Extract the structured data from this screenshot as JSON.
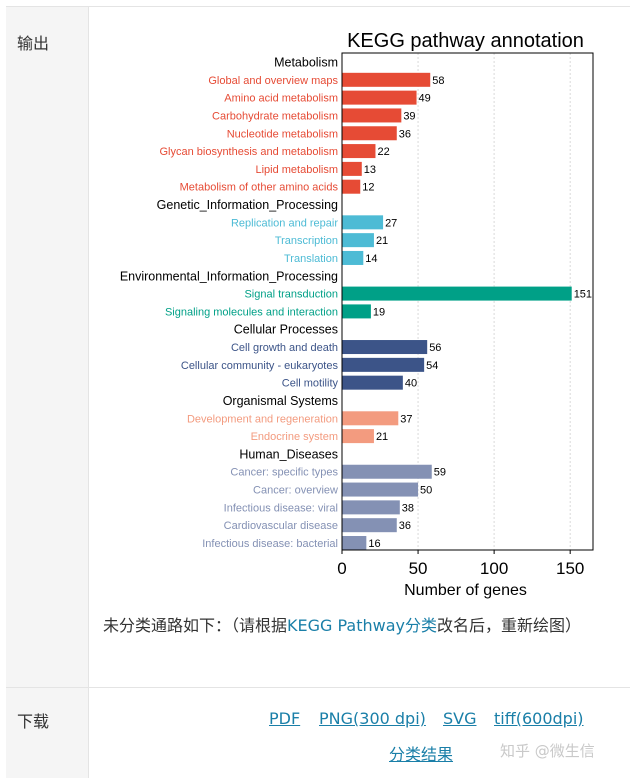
{
  "sections": {
    "output_label": "输出",
    "download_label": "下载"
  },
  "chart_data": {
    "type": "bar",
    "orientation": "horizontal",
    "title": "KEGG pathway annotation",
    "xlabel": "Number of genes",
    "ylabel": "",
    "xlim": [
      0,
      165
    ],
    "xticks": [
      0,
      50,
      100,
      150
    ],
    "grid": "vertical dashed",
    "groups": [
      {
        "name": "Metabolism",
        "color": "#e64b35",
        "items": [
          {
            "label": "Global and overview maps",
            "value": 58
          },
          {
            "label": "Amino acid metabolism",
            "value": 49
          },
          {
            "label": "Carbohydrate metabolism",
            "value": 39
          },
          {
            "label": "Nucleotide metabolism",
            "value": 36
          },
          {
            "label": "Glycan biosynthesis and metabolism",
            "value": 22
          },
          {
            "label": "Lipid metabolism",
            "value": 13
          },
          {
            "label": "Metabolism of other amino acids",
            "value": 12
          }
        ]
      },
      {
        "name": "Genetic_Information_Processing",
        "color": "#4dbbd5",
        "items": [
          {
            "label": "Replication and repair",
            "value": 27
          },
          {
            "label": "Transcription",
            "value": 21
          },
          {
            "label": "Translation",
            "value": 14
          }
        ]
      },
      {
        "name": "Environmental_Information_Processing",
        "color": "#00a087",
        "items": [
          {
            "label": "Signal transduction",
            "value": 151
          },
          {
            "label": "Signaling molecules and interaction",
            "value": 19
          }
        ]
      },
      {
        "name": "Cellular Processes",
        "color": "#3c5488",
        "items": [
          {
            "label": "Cell growth and death",
            "value": 56
          },
          {
            "label": "Cellular community - eukaryotes",
            "value": 54
          },
          {
            "label": "Cell motility",
            "value": 40
          }
        ]
      },
      {
        "name": "Organismal Systems",
        "color": "#f39b7f",
        "items": [
          {
            "label": "Development and regeneration",
            "value": 37
          },
          {
            "label": "Endocrine system",
            "value": 21
          }
        ]
      },
      {
        "name": "Human_Diseases",
        "color": "#8491b4",
        "items": [
          {
            "label": "Cancer: specific types",
            "value": 59
          },
          {
            "label": "Cancer: overview",
            "value": 50
          },
          {
            "label": "Infectious disease: viral",
            "value": 38
          },
          {
            "label": "Cardiovascular disease",
            "value": 36
          },
          {
            "label": "Infectious disease: bacterial",
            "value": 16
          }
        ]
      }
    ]
  },
  "note": {
    "prefix": "未分类通路如下：（请根据",
    "link": "KEGG Pathway分类",
    "suffix": "改名后，重新绘图）"
  },
  "downloads": {
    "pdf": "PDF",
    "png": "PNG(300 dpi)",
    "svg": "SVG",
    "tiff": "tiff(600dpi)",
    "results": "分类结果"
  },
  "watermark": "知乎 @微生信"
}
